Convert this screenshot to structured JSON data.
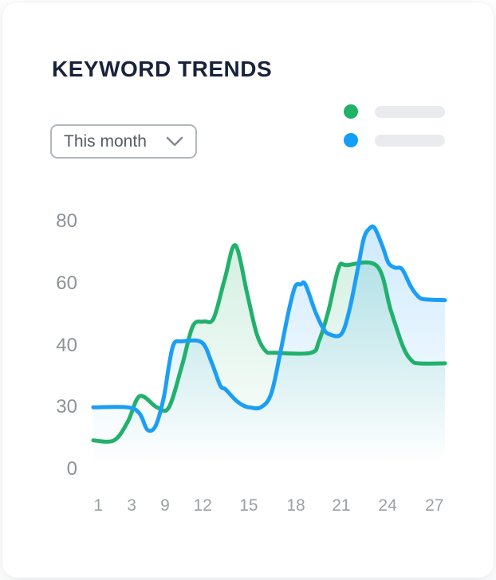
{
  "card": {
    "title": "KEYWORD TRENDS"
  },
  "filter_dropdown": {
    "label": "This month",
    "icon": "chevron-down-icon"
  },
  "legend": {
    "placeholder_color": "#e9ebee",
    "items": [
      {
        "name": "green-series",
        "dot_color": "#1fb268",
        "label_placeholder": true
      },
      {
        "name": "blue-series",
        "dot_color": "#149ef7",
        "label_placeholder": true
      }
    ]
  },
  "colors": {
    "title": "#18223a",
    "y_axis_label": "#8d9299",
    "x_axis_label": "#9ba0a6",
    "dropdown_border": "#b2b7bd",
    "dropdown_text": "#565c63"
  },
  "chart_data": {
    "type": "area",
    "title": "KEYWORD TRENDS",
    "grid": false,
    "legend_position": "top-right",
    "x_tick_labels": [
      "1",
      "3",
      "9",
      "12",
      "15",
      "18",
      "21",
      "24",
      "27"
    ],
    "x_tick_positions": [
      0.014,
      0.109,
      0.204,
      0.311,
      0.442,
      0.576,
      0.705,
      0.837,
      0.97
    ],
    "y_tick_labels": [
      "0",
      "30",
      "40",
      "60",
      "80"
    ],
    "y_tick_values": [
      0,
      30,
      40,
      60,
      80
    ],
    "y_axis_note": "tick values 0,30,40,60,80 are rendered equally spaced (non-linear scale)",
    "series": [
      {
        "name": "green-series",
        "color": "#22b16d",
        "fill_top_alpha": 0.22,
        "values_at_x_ticks": [
          14,
          26,
          30,
          48,
          54,
          39,
          65,
          55,
          37
        ],
        "points": [
          [
            0,
            14
          ],
          [
            0.059,
            14
          ],
          [
            0.098,
            23
          ],
          [
            0.132,
            31.8
          ],
          [
            0.181,
            30
          ],
          [
            0.215,
            30
          ],
          [
            0.252,
            36.7
          ],
          [
            0.283,
            46.2
          ],
          [
            0.313,
            47.7
          ],
          [
            0.342,
            48.7
          ],
          [
            0.374,
            61.5
          ],
          [
            0.404,
            72.3
          ],
          [
            0.438,
            56.4
          ],
          [
            0.465,
            43.6
          ],
          [
            0.49,
            39.1
          ],
          [
            0.517,
            38.8
          ],
          [
            0.619,
            38.8
          ],
          [
            0.642,
            41.5
          ],
          [
            0.669,
            51.3
          ],
          [
            0.698,
            65.1
          ],
          [
            0.721,
            65.9
          ],
          [
            0.807,
            65.6
          ],
          [
            0.846,
            51.3
          ],
          [
            0.88,
            39.9
          ],
          [
            0.903,
            37.7
          ],
          [
            0.925,
            37.1
          ],
          [
            1,
            37.1
          ]
        ]
      },
      {
        "name": "blue-series",
        "color": "#1c9ef5",
        "fill_top_alpha": 0.22,
        "values_at_x_ticks": [
          30,
          30,
          33,
          41,
          30,
          59,
          44,
          67,
          55
        ],
        "points": [
          [
            0,
            30
          ],
          [
            0.098,
            30
          ],
          [
            0.132,
            26.9
          ],
          [
            0.154,
            19.1
          ],
          [
            0.177,
            21
          ],
          [
            0.2,
            31.5
          ],
          [
            0.215,
            36.7
          ],
          [
            0.229,
            40.5
          ],
          [
            0.252,
            41.3
          ],
          [
            0.308,
            41
          ],
          [
            0.336,
            37.3
          ],
          [
            0.361,
            33.5
          ],
          [
            0.376,
            32.9
          ],
          [
            0.404,
            31.2
          ],
          [
            0.426,
            30.3
          ],
          [
            0.444,
            30
          ],
          [
            0.476,
            30
          ],
          [
            0.506,
            32.2
          ],
          [
            0.533,
            39.2
          ],
          [
            0.556,
            51.3
          ],
          [
            0.574,
            59
          ],
          [
            0.59,
            59.7
          ],
          [
            0.603,
            59.7
          ],
          [
            0.63,
            51.3
          ],
          [
            0.653,
            45.6
          ],
          [
            0.671,
            43.6
          ],
          [
            0.705,
            43.6
          ],
          [
            0.728,
            51.3
          ],
          [
            0.751,
            64.1
          ],
          [
            0.769,
            74.4
          ],
          [
            0.785,
            77.7
          ],
          [
            0.8,
            77.9
          ],
          [
            0.823,
            71.8
          ],
          [
            0.839,
            66.7
          ],
          [
            0.857,
            65.1
          ],
          [
            0.878,
            64.6
          ],
          [
            0.903,
            59
          ],
          [
            0.923,
            55.9
          ],
          [
            0.941,
            54.9
          ],
          [
            1,
            54.6
          ]
        ]
      }
    ]
  }
}
